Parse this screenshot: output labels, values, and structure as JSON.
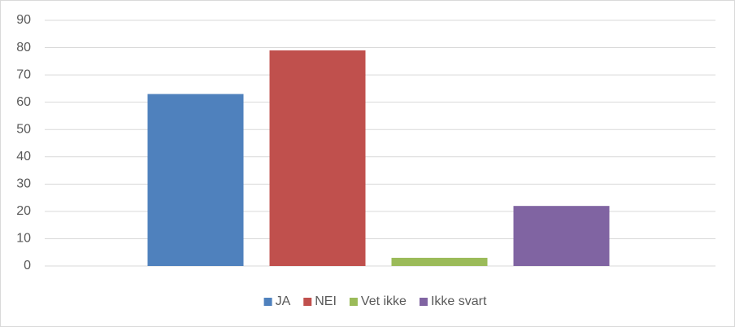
{
  "chart_data": {
    "type": "bar",
    "categories": [
      null
    ],
    "series": [
      {
        "name": "JA",
        "color": "#4f81bd",
        "values": [
          63
        ]
      },
      {
        "name": "NEI",
        "color": "#c0504d",
        "values": [
          79
        ]
      },
      {
        "name": "Vet ikke",
        "color": "#9bbb59",
        "values": [
          3
        ]
      },
      {
        "name": "Ikke svart",
        "color": "#8064a2",
        "values": [
          22
        ]
      }
    ],
    "ylim": [
      0,
      90
    ],
    "yticks": [
      0,
      10,
      20,
      30,
      40,
      50,
      60,
      70,
      80,
      90
    ],
    "grid": true,
    "legend": "bottom"
  }
}
